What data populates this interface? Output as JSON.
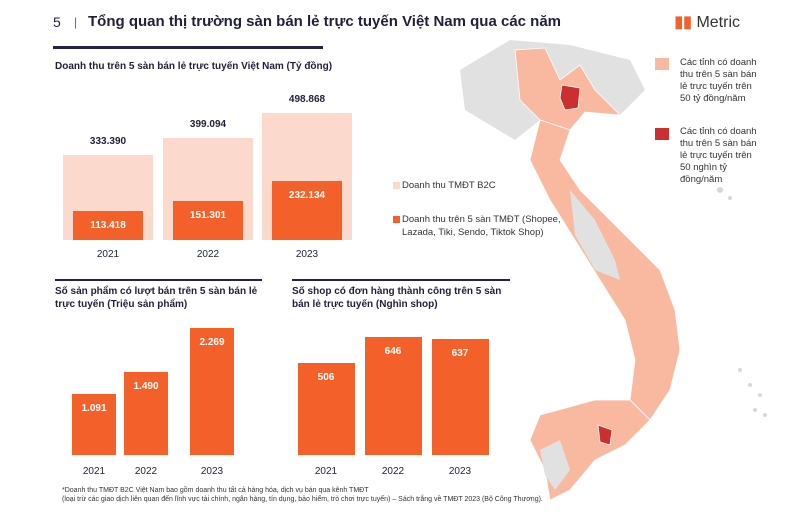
{
  "header": {
    "page_number": "5",
    "separator": "|",
    "title": "Tổng quan thị trường sàn bán lẻ trực tuyến Việt Nam qua các năm",
    "logo": "Metric"
  },
  "colors": {
    "light": "#fbd9cc",
    "accent": "#f4602a",
    "navy": "#22224a",
    "map_peach": "#f9b8a0",
    "map_red": "#cc2f2f",
    "map_gray": "#e1e1e1"
  },
  "chart_data": [
    {
      "type": "bar",
      "title": "Doanh thu trên 5 sàn bán lẻ trực tuyến Việt Nam (Tỷ đồng)",
      "categories": [
        "2021",
        "2022",
        "2023"
      ],
      "series": [
        {
          "name": "Doanh thu TMĐT B2C",
          "values": [
            333390,
            399094,
            498868
          ],
          "labels": [
            "333.390",
            "399.094",
            "498.868"
          ]
        },
        {
          "name": "Doanh thu trên 5 sàn TMĐT (Shopee, Lazada, Tiki, Sendo, Tiktok Shop)",
          "values": [
            113418,
            151301,
            232134
          ],
          "labels": [
            "113.418",
            "151.301",
            "232.134"
          ]
        }
      ]
    },
    {
      "type": "bar",
      "title": "Số sản phẩm có lượt bán trên 5 sàn bán lẻ trực tuyến (Triệu sản phẩm)",
      "categories": [
        "2021",
        "2022",
        "2023"
      ],
      "values": [
        1.091,
        1.49,
        2.269
      ],
      "labels": [
        "1.091",
        "1.490",
        "2.269"
      ]
    },
    {
      "type": "bar",
      "title": "Số shop có đơn hàng thành công trên 5 sàn bán lẻ trực tuyến (Nghìn shop)",
      "categories": [
        "2021",
        "2022",
        "2023"
      ],
      "values": [
        506,
        646,
        637
      ],
      "labels": [
        "506",
        "646",
        "637"
      ]
    }
  ],
  "map_legend": [
    "Các tỉnh có doanh thu trên 5 sàn bán lẻ trực tuyến trên 50 tỷ đồng/năm",
    "Các tỉnh có doanh thu trên 5 sàn bán lẻ trực tuyến trên 50 nghìn tỷ đồng/năm"
  ],
  "footnote": [
    "*Doanh thu TMĐT B2C Việt Nam bao gồm doanh thu tất cả hàng hóa, dịch vụ bán qua kênh TMĐT",
    "(loại trừ các giao dịch liên quan đến lĩnh vực tài chính, ngân hàng, tín dụng, bảo hiểm, trò chơi trực tuyến) – Sách trắng về TMĐT 2023 (Bộ Công Thương)."
  ]
}
